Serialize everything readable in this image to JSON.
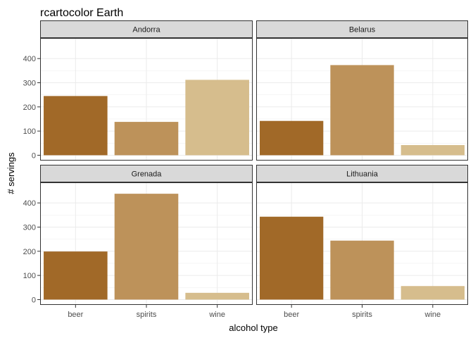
{
  "chart_data": {
    "type": "bar",
    "title": "rcartocolor Earth",
    "xlabel": "alcohol type",
    "ylabel": "# servings",
    "categories": [
      "beer",
      "spirits",
      "wine"
    ],
    "y_ticks": [
      0,
      100,
      200,
      300,
      400
    ],
    "ylim": [
      -22,
      485
    ],
    "grid": true,
    "colors": {
      "beer": "#A16928",
      "spirits": "#BD925A",
      "wine": "#D6BD8D"
    },
    "facets": [
      {
        "name": "Andorra",
        "values": [
          245,
          138,
          312
        ]
      },
      {
        "name": "Belarus",
        "values": [
          142,
          373,
          42
        ]
      },
      {
        "name": "Grenada",
        "values": [
          199,
          438,
          28
        ]
      },
      {
        "name": "Lithuania",
        "values": [
          343,
          244,
          56
        ]
      }
    ]
  }
}
